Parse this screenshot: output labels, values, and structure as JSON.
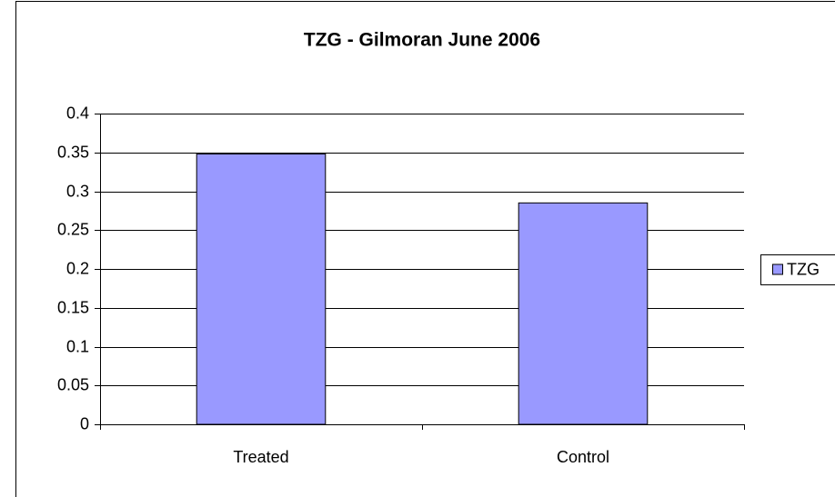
{
  "chart_data": {
    "type": "bar",
    "title": "TZG - Gilmoran June 2006",
    "categories": [
      "Treated",
      "Control"
    ],
    "series": [
      {
        "name": "TZG",
        "color": "#9999ff",
        "values": [
          0.348,
          0.285
        ]
      }
    ],
    "ylim": [
      0,
      0.4
    ],
    "yticks": [
      0,
      0.05,
      0.1,
      0.15,
      0.2,
      0.25,
      0.3,
      0.35,
      0.4
    ],
    "grid": true,
    "legend": "right"
  }
}
